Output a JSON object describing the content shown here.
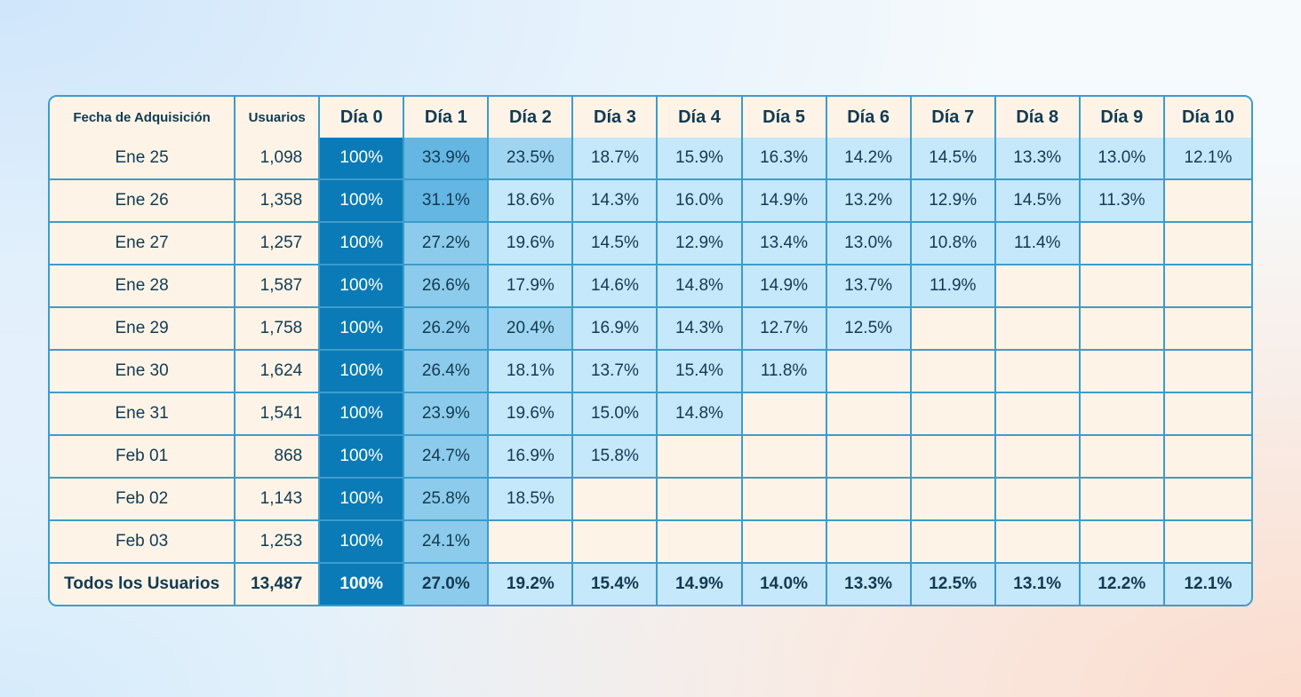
{
  "chart_data": {
    "type": "table",
    "title": "",
    "columns": [
      "Fecha de Adquisición",
      "Usuarios",
      "Día 0",
      "Día 1",
      "Día 2",
      "Día 3",
      "Día 4",
      "Día 5",
      "Día 6",
      "Día 7",
      "Día 8",
      "Día 9",
      "Día 10"
    ],
    "rows": [
      {
        "date": "Ene 25",
        "users": "1,098",
        "values": [
          "100%",
          "33.9%",
          "23.5%",
          "18.7%",
          "15.9%",
          "16.3%",
          "14.2%",
          "14.5%",
          "13.3%",
          "13.0%",
          "12.1%"
        ]
      },
      {
        "date": "Ene 26",
        "users": "1,358",
        "values": [
          "100%",
          "31.1%",
          "18.6%",
          "14.3%",
          "16.0%",
          "14.9%",
          "13.2%",
          "12.9%",
          "14.5%",
          "11.3%"
        ]
      },
      {
        "date": "Ene 27",
        "users": "1,257",
        "values": [
          "100%",
          "27.2%",
          "19.6%",
          "14.5%",
          "12.9%",
          "13.4%",
          "13.0%",
          "10.8%",
          "11.4%"
        ]
      },
      {
        "date": "Ene 28",
        "users": "1,587",
        "values": [
          "100%",
          "26.6%",
          "17.9%",
          "14.6%",
          "14.8%",
          "14.9%",
          "13.7%",
          "11.9%"
        ]
      },
      {
        "date": "Ene 29",
        "users": "1,758",
        "values": [
          "100%",
          "26.2%",
          "20.4%",
          "16.9%",
          "14.3%",
          "12.7%",
          "12.5%"
        ]
      },
      {
        "date": "Ene 30",
        "users": "1,624",
        "values": [
          "100%",
          "26.4%",
          "18.1%",
          "13.7%",
          "15.4%",
          "11.8%"
        ]
      },
      {
        "date": "Ene 31",
        "users": "1,541",
        "values": [
          "100%",
          "23.9%",
          "19.6%",
          "15.0%",
          "14.8%"
        ]
      },
      {
        "date": "Feb 01",
        "users": "868",
        "values": [
          "100%",
          "24.7%",
          "16.9%",
          "15.8%"
        ]
      },
      {
        "date": "Feb 02",
        "users": "1,143",
        "values": [
          "100%",
          "25.8%",
          "18.5%"
        ]
      },
      {
        "date": "Feb 03",
        "users": "1,253",
        "values": [
          "100%",
          "24.1%"
        ]
      }
    ],
    "total": {
      "date": "Todos los Usuarios",
      "users": "13,487",
      "values": [
        "100%",
        "27.0%",
        "19.2%",
        "15.4%",
        "14.9%",
        "14.0%",
        "13.3%",
        "12.5%",
        "13.1%",
        "12.2%",
        "12.1%"
      ]
    }
  },
  "colors": {
    "border": "#3d9ccb",
    "cream": "#fdf4e7",
    "day0": "#0a7bb7",
    "day1": "#8ccbeb",
    "light": "#c6e8fb",
    "text": "#123a52"
  }
}
